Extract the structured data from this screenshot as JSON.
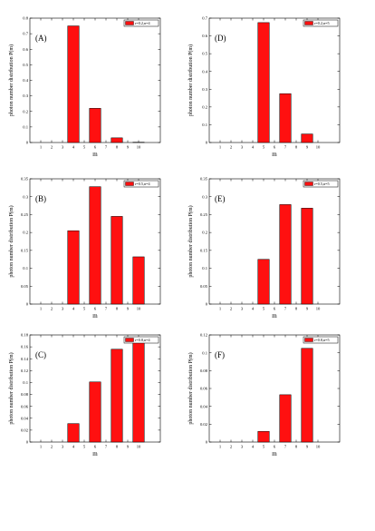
{
  "chart_data": [
    {
      "type": "bar",
      "panel_label": "(A)",
      "legend": "r=0.2,n=4",
      "xlabel": "m",
      "ylabel": "photon number distribution P(m)",
      "x_ticks": [
        "1",
        "2",
        "3",
        "4",
        "5",
        "6",
        "7",
        "8",
        "9",
        "10"
      ],
      "xlim": [
        0,
        12
      ],
      "ylim": [
        0,
        0.8
      ],
      "y_ticks": [
        "0",
        "0.1",
        "0.2",
        "0.3",
        "0.4",
        "0.5",
        "0.6",
        "0.7",
        "0.8"
      ],
      "x": [
        4,
        6,
        8,
        10
      ],
      "values": [
        0.75,
        0.22,
        0.03,
        0.002
      ],
      "bar_color": "#ff1010"
    },
    {
      "type": "bar",
      "panel_label": "(D)",
      "legend": "r=0.2,n=5",
      "xlabel": "m",
      "ylabel": "photon number distribution P(m)",
      "x_ticks": [
        "1",
        "2",
        "3",
        "4",
        "5",
        "6",
        "7",
        "8",
        "9",
        "10"
      ],
      "xlim": [
        0,
        12
      ],
      "ylim": [
        0,
        0.7
      ],
      "y_ticks": [
        "0",
        "0.1",
        "0.2",
        "0.3",
        "0.4",
        "0.5",
        "0.6",
        "0.7"
      ],
      "x": [
        5,
        7,
        9
      ],
      "values": [
        0.675,
        0.275,
        0.048
      ],
      "bar_color": "#ff1010"
    },
    {
      "type": "bar",
      "panel_label": "(B)",
      "legend": "r=0.5,n=4",
      "xlabel": "m",
      "ylabel": "photon number distribution P(m)",
      "x_ticks": [
        "1",
        "2",
        "3",
        "4",
        "5",
        "6",
        "7",
        "8",
        "9",
        "10"
      ],
      "xlim": [
        0,
        12
      ],
      "ylim": [
        0,
        0.35
      ],
      "y_ticks": [
        "0",
        "0.05",
        "0.1",
        "0.15",
        "0.2",
        "0.25",
        "0.3",
        "0.35"
      ],
      "x": [
        4,
        6,
        8,
        10
      ],
      "values": [
        0.205,
        0.328,
        0.245,
        0.132
      ],
      "bar_color": "#ff1010"
    },
    {
      "type": "bar",
      "panel_label": "(E)",
      "legend": "r=0.5,n=5",
      "xlabel": "m",
      "ylabel": "photon number distribution P(m)",
      "x_ticks": [
        "1",
        "2",
        "3",
        "4",
        "5",
        "6",
        "7",
        "8",
        "9",
        "10"
      ],
      "xlim": [
        0,
        12
      ],
      "ylim": [
        0,
        0.35
      ],
      "y_ticks": [
        "0",
        "0.05",
        "0.1",
        "0.15",
        "0.2",
        "0.25",
        "0.3",
        "0.35"
      ],
      "x": [
        5,
        7,
        9
      ],
      "values": [
        0.125,
        0.278,
        0.268
      ],
      "bar_color": "#ff1010"
    },
    {
      "type": "bar",
      "panel_label": "(C)",
      "legend": "r=0.8,n=4",
      "xlabel": "m",
      "ylabel": "photon number distribution P(m)",
      "x_ticks": [
        "1",
        "2",
        "3",
        "4",
        "5",
        "6",
        "7",
        "8",
        "9",
        "10"
      ],
      "xlim": [
        0,
        12
      ],
      "ylim": [
        0,
        0.18
      ],
      "y_ticks": [
        "0",
        "0.02",
        "0.04",
        "0.06",
        "0.08",
        "0.1",
        "0.12",
        "0.14",
        "0.16",
        "0.18"
      ],
      "x": [
        4,
        6,
        8,
        10
      ],
      "values": [
        0.031,
        0.101,
        0.156,
        0.175
      ],
      "bar_color": "#ff1010"
    },
    {
      "type": "bar",
      "panel_label": "(F)",
      "legend": "r=0.8,n=5",
      "xlabel": "m",
      "ylabel": "photon number distribution P(m)",
      "x_ticks": [
        "1",
        "2",
        "3",
        "4",
        "5",
        "6",
        "7",
        "8",
        "9",
        "10"
      ],
      "xlim": [
        0,
        12
      ],
      "ylim": [
        0,
        0.12
      ],
      "y_ticks": [
        "0",
        "0.02",
        "0.04",
        "0.06",
        "0.08",
        "0.1",
        "0.12"
      ],
      "x": [
        5,
        7,
        9
      ],
      "values": [
        0.012,
        0.053,
        0.105
      ],
      "bar_color": "#ff1010"
    }
  ]
}
